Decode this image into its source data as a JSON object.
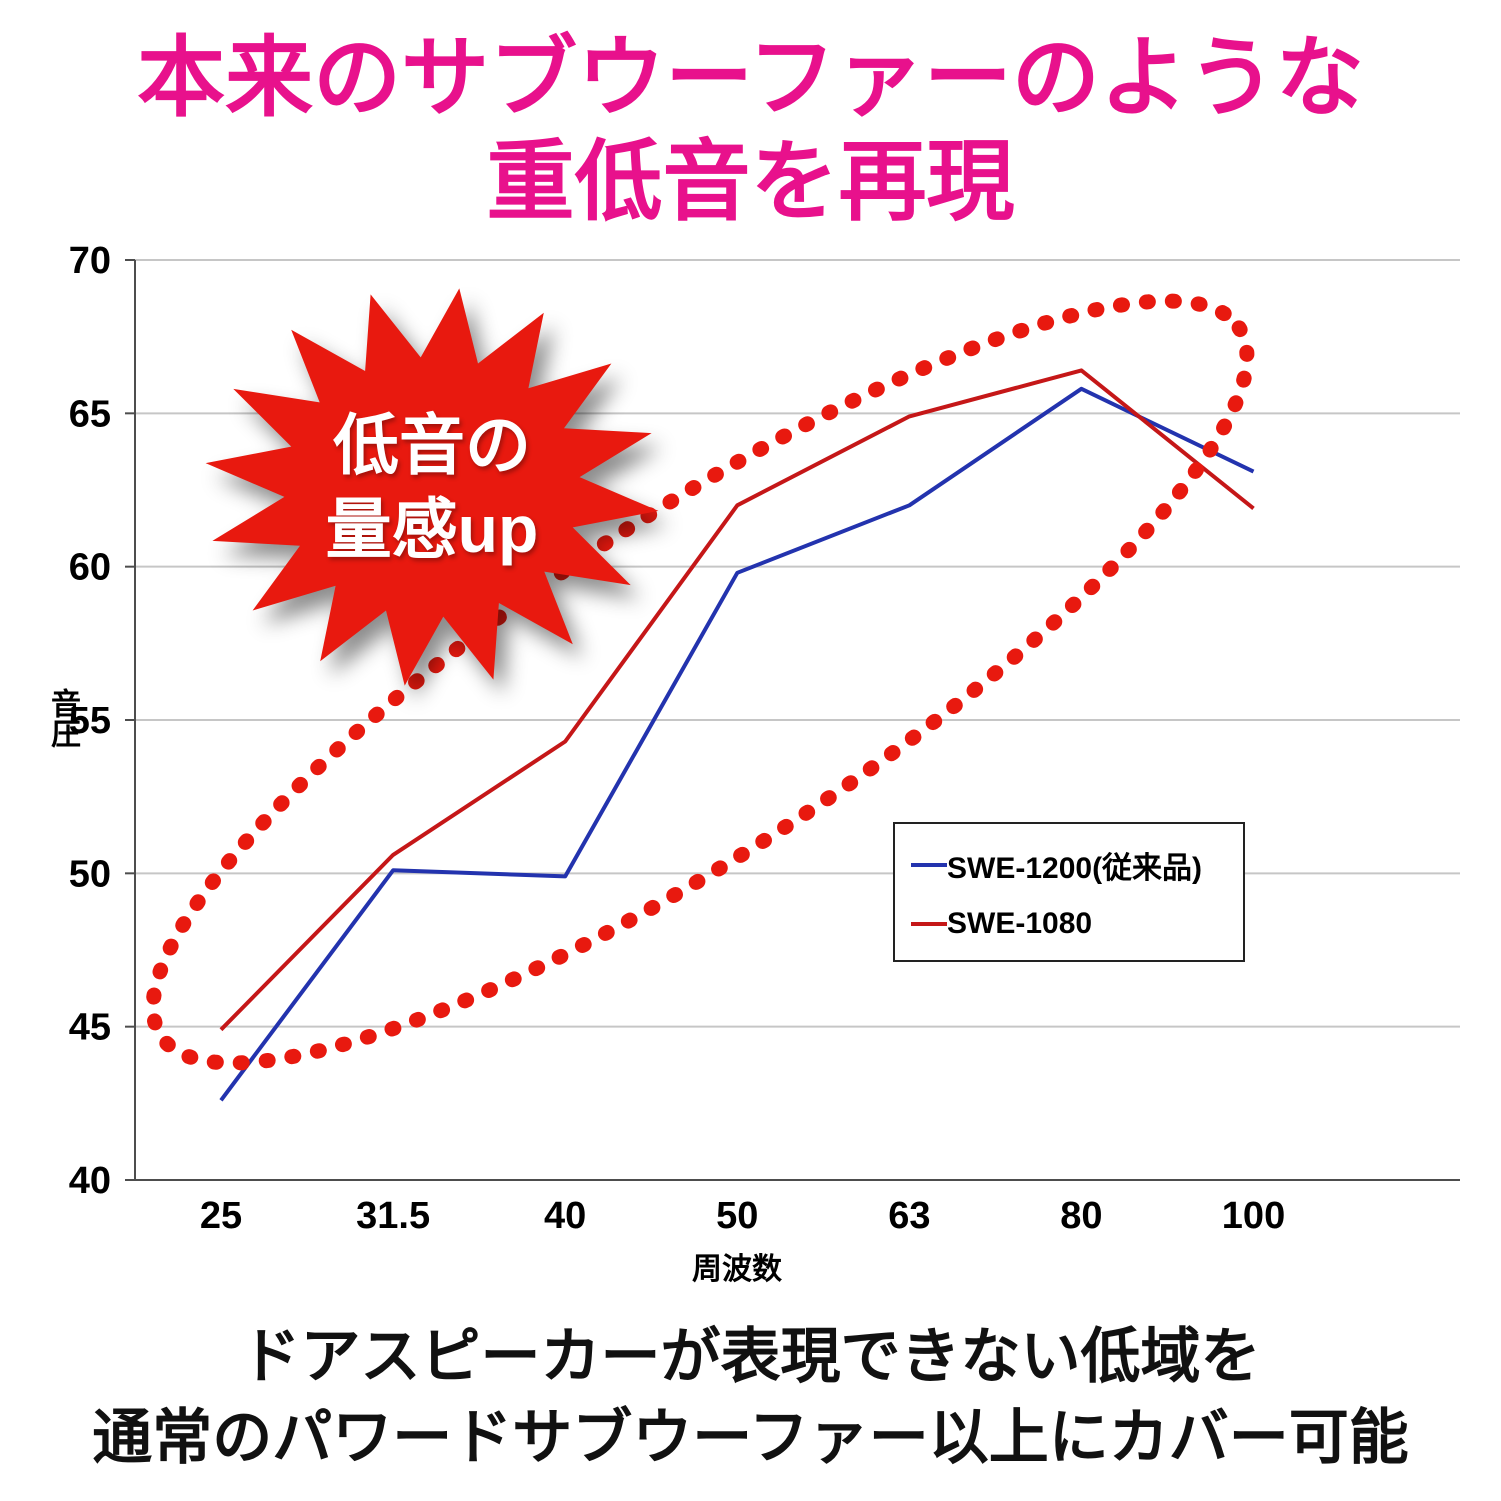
{
  "page": {
    "title_line1": "本来のサブウーファーのような",
    "title_line2": "重低音を再現",
    "title_color": "#E8118C",
    "caption_line1": "ドアスピーカーが表現できない低域を",
    "caption_line2": "通常のパワードサブウーファー以上にカバー可能"
  },
  "badge": {
    "line1": "低音の",
    "line2": "量感up",
    "color": "#E8190F",
    "text_color": "#FFFFFF"
  },
  "chart_data": {
    "type": "line",
    "title": "",
    "categories": [
      "25",
      "31.5",
      "40",
      "50",
      "63",
      "80",
      "100"
    ],
    "series": [
      {
        "name": "SWE-1200(従来品)",
        "color": "#2333AE",
        "values": [
          42.6,
          50.1,
          49.9,
          59.8,
          62.0,
          65.8,
          63.1
        ]
      },
      {
        "name": "SWE-1080",
        "color": "#C51718",
        "values": [
          44.9,
          50.6,
          54.3,
          62.0,
          64.9,
          66.4,
          61.9
        ]
      }
    ],
    "xlabel": "周波数",
    "ylabel": "音圧",
    "ylim": [
      40,
      70
    ],
    "yticks": [
      40,
      45,
      50,
      55,
      60,
      65,
      70
    ],
    "grid": "horizontal-gridlines",
    "gridline_color": "#C6C6C6",
    "axis_color": "#4D4D4D",
    "legend_position": "center-right-box",
    "annotation_ellipse_color": "#E8190F"
  }
}
